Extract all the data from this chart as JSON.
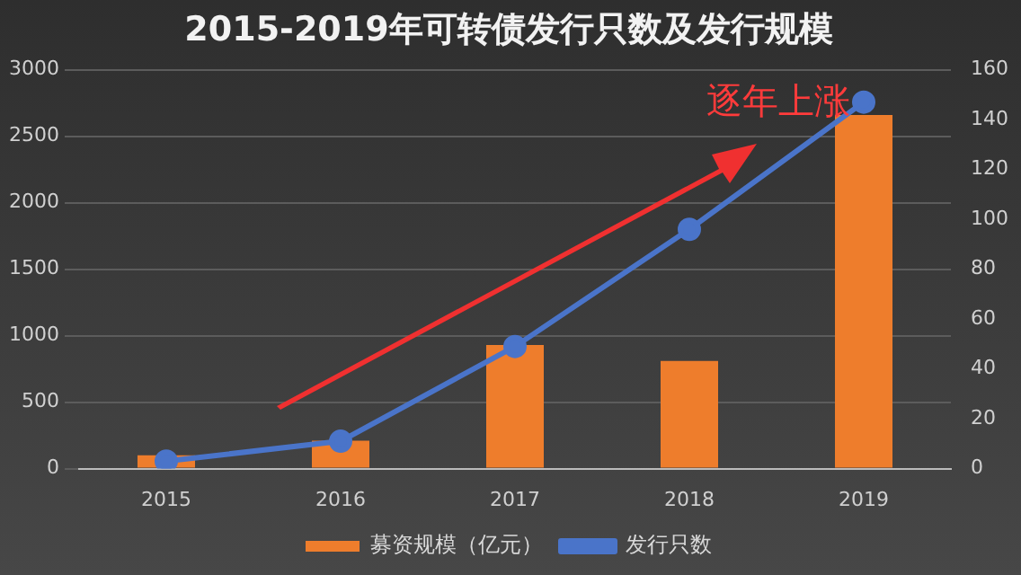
{
  "chart_data": {
    "type": "bar",
    "title": "2015-2019年可转债发行只数及发行规模",
    "categories": [
      "2015",
      "2016",
      "2017",
      "2018",
      "2019"
    ],
    "series": [
      {
        "name": "募资规模（亿元）",
        "color": "#ee7d2c",
        "values": [
          100,
          210,
          930,
          810,
          2660
        ]
      },
      {
        "name": "发行只数",
        "type": "line",
        "axis": "y2",
        "color": "#4a74c9",
        "values": [
          3,
          11,
          49,
          96,
          147
        ]
      }
    ],
    "ylim": [
      0,
      3000
    ],
    "yticks": [
      0,
      500,
      1000,
      1500,
      2000,
      2500,
      3000
    ],
    "y2lim": [
      0,
      160
    ],
    "y2ticks": [
      0,
      20,
      40,
      60,
      80,
      100,
      120,
      140,
      160
    ],
    "grid": "y",
    "legend": "bottom",
    "marker": "circle",
    "line_style": "solid",
    "annotations": [
      "逐年上涨"
    ]
  }
}
